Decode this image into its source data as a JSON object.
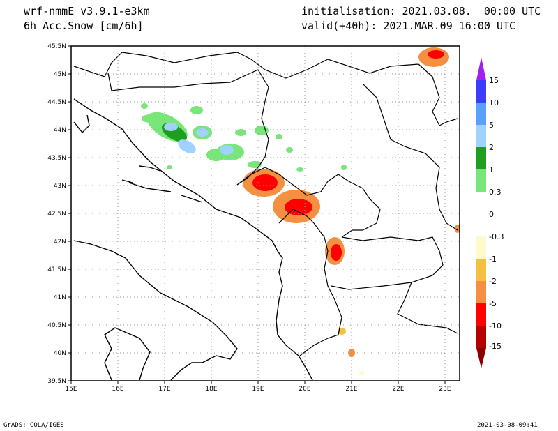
{
  "header": {
    "model": "wrf-nmmE_v3.9.1-e3km",
    "field": "6h Acc.Snow [cm/6h]",
    "init": "initialisation: 2021.03.08.  00:00 UTC",
    "valid": "valid(+40h): 2021.MAR.09 16:00 UTC"
  },
  "footer": {
    "left": "GrADS: COLA/IGES",
    "right": "2021-03-08-09:41"
  },
  "axes": {
    "lat_ticks": [
      "45.5N",
      "45N",
      "44.5N",
      "44N",
      "43.5N",
      "43N",
      "42.5N",
      "42N",
      "41.5N",
      "41N",
      "40.5N",
      "40N",
      "39.5N"
    ],
    "lon_ticks": [
      "15E",
      "16E",
      "17E",
      "18E",
      "19E",
      "20E",
      "21E",
      "22E",
      "23E"
    ]
  },
  "colorbar": {
    "labels": [
      "15",
      "10",
      "5",
      "2",
      "1",
      "0.3",
      "0",
      "-0.3",
      "-1",
      "-2",
      "-5",
      "-10",
      "-15"
    ],
    "colors": [
      "#a020f0",
      "#3c3cff",
      "#5aa0ff",
      "#a0d2ff",
      "#1e9e1e",
      "#78e678",
      "#ffffff",
      "#ffffff",
      "#fffacd",
      "#f5c040",
      "#f59040",
      "#ff0000",
      "#b40000"
    ]
  },
  "palette": {
    "green_light": "#78e678",
    "green_dark": "#1e9e1e",
    "blue_light": "#a0d2ff",
    "blue_mid": "#5aa0ff",
    "yellow_light": "#fffacd",
    "yellow": "#f5c040",
    "orange": "#f59040",
    "red": "#ff0000",
    "dark_red": "#b40000"
  }
}
